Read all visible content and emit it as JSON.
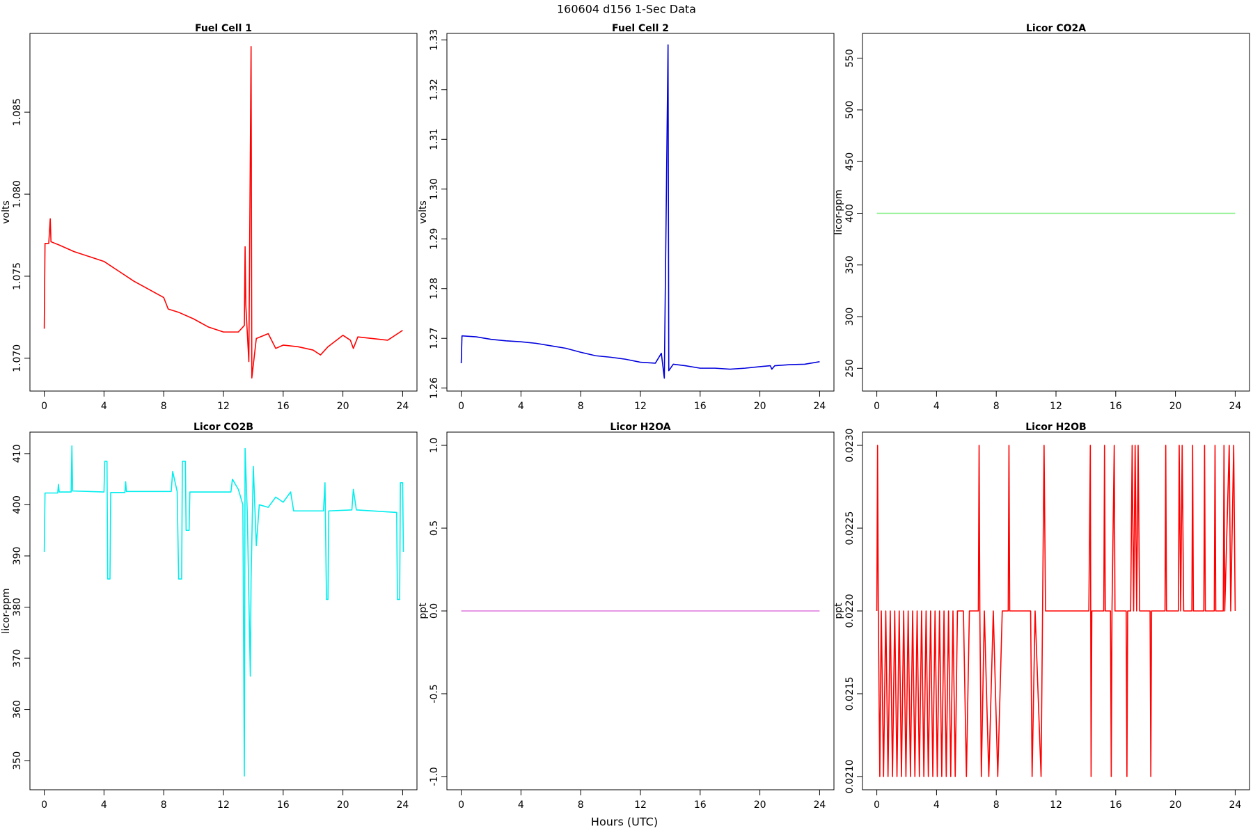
{
  "title": "160604   d156   1-Sec Data",
  "xlabel": "Hours (UTC)",
  "chart_data": [
    {
      "type": "line",
      "title": "Fuel Cell 1",
      "ylabel": "volts",
      "color": "#ff0000",
      "xlim": [
        -0.96,
        24.96
      ],
      "xticks": [
        0,
        4,
        8,
        12,
        16,
        20,
        24
      ],
      "ylim": [
        1.068,
        1.0898
      ],
      "yticks": [
        {
          "value": 1.07,
          "label": "1.070"
        },
        {
          "value": 1.075,
          "label": "1.075"
        },
        {
          "value": 1.08,
          "label": "1.080"
        },
        {
          "value": 1.085,
          "label": "1.085"
        }
      ],
      "x": [
        0,
        0.05,
        0.3,
        0.4,
        0.45,
        1,
        2,
        3,
        4,
        5,
        6,
        7,
        8,
        8.3,
        9,
        10,
        11,
        12,
        13,
        13.4,
        13.45,
        13.5,
        13.7,
        13.85,
        13.9,
        14.2,
        15,
        15.5,
        16,
        17,
        18,
        18.5,
        19,
        20,
        20.5,
        20.7,
        21,
        22,
        23,
        24
      ],
      "values": [
        1.0718,
        1.077,
        1.077,
        1.0785,
        1.0771,
        1.0769,
        1.0765,
        1.0762,
        1.0759,
        1.0753,
        1.0747,
        1.0742,
        1.0737,
        1.073,
        1.0728,
        1.0724,
        1.0719,
        1.0716,
        1.0716,
        1.072,
        1.0768,
        1.0732,
        1.0698,
        1.089,
        1.0688,
        1.0712,
        1.0715,
        1.0706,
        1.0708,
        1.0707,
        1.0705,
        1.0702,
        1.0707,
        1.0714,
        1.0711,
        1.0706,
        1.0713,
        1.0712,
        1.0711,
        1.0717
      ]
    },
    {
      "type": "line",
      "title": "Fuel Cell 2",
      "ylabel": "volts",
      "color": "#0000dd",
      "xlim": [
        -0.96,
        24.96
      ],
      "xticks": [
        0,
        4,
        8,
        12,
        16,
        20,
        24
      ],
      "ylim": [
        1.2594,
        1.3313
      ],
      "yticks": [
        1.26,
        1.27,
        1.28,
        1.29,
        {
          "value": 1.3,
          "label": "1.30"
        },
        1.31,
        1.32,
        1.33
      ],
      "x": [
        0,
        0.05,
        1,
        2,
        3,
        4,
        5,
        6,
        7,
        8,
        9,
        10,
        11,
        12,
        13,
        13.4,
        13.6,
        13.85,
        13.9,
        14.2,
        15,
        16,
        17,
        18,
        19,
        20,
        20.7,
        20.8,
        21,
        22,
        23,
        24
      ],
      "values": [
        1.265,
        1.2705,
        1.2703,
        1.2698,
        1.2695,
        1.2693,
        1.269,
        1.2685,
        1.268,
        1.2672,
        1.2665,
        1.2662,
        1.2658,
        1.2652,
        1.265,
        1.267,
        1.262,
        1.329,
        1.2635,
        1.2648,
        1.2645,
        1.264,
        1.264,
        1.2638,
        1.264,
        1.2643,
        1.2645,
        1.2638,
        1.2645,
        1.2647,
        1.2648,
        1.2653
      ]
    },
    {
      "type": "line",
      "title": "Licor CO2A",
      "ylabel": "licor-ppm",
      "color": "#80ee80",
      "xlim": [
        -0.96,
        24.96
      ],
      "xticks": [
        0,
        4,
        8,
        12,
        16,
        20,
        24
      ],
      "ylim": [
        228,
        574
      ],
      "yticks": [
        250,
        300,
        350,
        400,
        450,
        500,
        550
      ],
      "x": [
        0,
        24
      ],
      "values": [
        400,
        400
      ]
    },
    {
      "type": "line",
      "title": "Licor CO2B",
      "ylabel": "licor-ppm",
      "color": "#00eeee",
      "xlim": [
        -0.96,
        24.96
      ],
      "xticks": [
        0,
        4,
        8,
        12,
        16,
        20,
        24
      ],
      "ylim": [
        344.3,
        414.2
      ],
      "yticks": [
        350,
        360,
        370,
        380,
        390,
        400,
        410
      ],
      "x": [
        0,
        0.05,
        0.9,
        0.95,
        1,
        1.8,
        1.85,
        1.9,
        4,
        4.05,
        4.2,
        4.25,
        4.4,
        4.45,
        5.4,
        5.45,
        5.5,
        8.5,
        8.6,
        8.9,
        9,
        9.2,
        9.25,
        9.45,
        9.5,
        9.7,
        9.75,
        12.5,
        12.6,
        13,
        13.3,
        13.4,
        13.45,
        13.6,
        13.8,
        13.85,
        14,
        14.2,
        14.4,
        15,
        15.5,
        16,
        16.5,
        16.7,
        18.7,
        18.8,
        18.9,
        19,
        19.05,
        20.6,
        20.7,
        20.9,
        23.6,
        23.65,
        23.8,
        23.85,
        24,
        24.05
      ],
      "values": [
        390.8,
        402.3,
        402.3,
        404,
        402.5,
        402.5,
        411.5,
        402.7,
        402.5,
        408.5,
        408.5,
        385.5,
        385.5,
        402.4,
        402.4,
        404.5,
        402.6,
        402.6,
        406.5,
        402.6,
        385.5,
        385.5,
        408.5,
        408.5,
        395,
        395,
        402.5,
        402.5,
        405,
        403,
        400,
        347,
        411,
        398,
        366.5,
        385.5,
        407.5,
        392,
        400,
        399.5,
        401.5,
        400.5,
        402.5,
        398.8,
        398.8,
        404.3,
        381.5,
        381.5,
        398.8,
        399,
        403,
        399,
        398.5,
        381.5,
        381.5,
        404.3,
        404.3,
        390.8
      ]
    },
    {
      "type": "line",
      "title": "Licor H2OA",
      "ylabel": "ppt",
      "color": "#dd77dd",
      "xlim": [
        -0.96,
        24.96
      ],
      "xticks": [
        0,
        4,
        8,
        12,
        16,
        20,
        24
      ],
      "ylim": [
        -1.08,
        1.08
      ],
      "yticks": [
        {
          "value": -1,
          "label": "-1.0"
        },
        -0.5,
        {
          "value": 0,
          "label": "0.0"
        },
        0.5,
        {
          "value": 1,
          "label": "1.0"
        }
      ],
      "x": [
        0,
        24
      ],
      "values": [
        0,
        0
      ]
    },
    {
      "type": "line",
      "title": "Licor H2OB",
      "ylabel": "ppt",
      "color": "#ff0000",
      "xlim": [
        -0.96,
        24.96
      ],
      "xticks": [
        0,
        4,
        8,
        12,
        16,
        20,
        24
      ],
      "ylim": [
        0.02092,
        0.02308
      ],
      "yticks": [
        {
          "value": 0.021,
          "label": "0.0210"
        },
        0.0215,
        {
          "value": 0.022,
          "label": "0.0220"
        },
        0.0225,
        {
          "value": 0.023,
          "label": "0.0230"
        }
      ],
      "x": [
        0,
        0.05,
        0.1,
        0.2,
        0.3,
        0.45,
        0.6,
        0.75,
        0.9,
        1.05,
        1.2,
        1.35,
        1.5,
        1.65,
        1.8,
        1.95,
        2.1,
        2.25,
        2.4,
        2.55,
        2.7,
        2.85,
        3,
        3.15,
        3.3,
        3.45,
        3.6,
        3.75,
        3.9,
        4.05,
        4.2,
        4.35,
        4.5,
        4.65,
        4.8,
        4.95,
        5.1,
        5.25,
        5.4,
        5.5,
        5.8,
        6,
        6.2,
        6.8,
        6.85,
        6.9,
        7,
        7.2,
        7.5,
        7.8,
        8.1,
        8.4,
        8.8,
        8.85,
        8.9,
        10.3,
        10.4,
        10.6,
        11,
        11.2,
        11.3,
        14.2,
        14.3,
        14.35,
        14.4,
        15.2,
        15.25,
        15.3,
        15.65,
        15.7,
        15.75,
        15.9,
        15.95,
        16.7,
        16.75,
        16.8,
        17,
        17.1,
        17.2,
        17.3,
        17.4,
        17.5,
        17.6,
        18.3,
        18.35,
        18.4,
        19.3,
        19.35,
        19.4,
        20.2,
        20.25,
        20.35,
        20.45,
        20.55,
        21.1,
        21.15,
        21.2,
        21.9,
        21.95,
        22,
        22.6,
        22.65,
        22.7,
        23.2,
        23.25,
        23.3,
        23.6,
        23.7,
        23.9,
        24
      ],
      "values": [
        0.022,
        0.023,
        0.022,
        0.021,
        0.022,
        0.021,
        0.022,
        0.021,
        0.022,
        0.021,
        0.022,
        0.021,
        0.022,
        0.021,
        0.022,
        0.021,
        0.022,
        0.021,
        0.022,
        0.021,
        0.022,
        0.021,
        0.022,
        0.021,
        0.022,
        0.021,
        0.022,
        0.021,
        0.022,
        0.021,
        0.022,
        0.021,
        0.022,
        0.021,
        0.022,
        0.021,
        0.022,
        0.021,
        0.022,
        0.022,
        0.022,
        0.021,
        0.022,
        0.022,
        0.023,
        0.022,
        0.021,
        0.022,
        0.021,
        0.022,
        0.021,
        0.022,
        0.022,
        0.023,
        0.022,
        0.022,
        0.021,
        0.022,
        0.021,
        0.023,
        0.022,
        0.022,
        0.023,
        0.021,
        0.022,
        0.022,
        0.023,
        0.022,
        0.022,
        0.021,
        0.022,
        0.023,
        0.022,
        0.022,
        0.021,
        0.022,
        0.022,
        0.023,
        0.022,
        0.023,
        0.022,
        0.023,
        0.022,
        0.022,
        0.021,
        0.022,
        0.022,
        0.023,
        0.022,
        0.022,
        0.023,
        0.022,
        0.023,
        0.022,
        0.022,
        0.023,
        0.022,
        0.022,
        0.023,
        0.022,
        0.022,
        0.023,
        0.022,
        0.022,
        0.023,
        0.022,
        0.023,
        0.022,
        0.023,
        0.022
      ]
    }
  ]
}
